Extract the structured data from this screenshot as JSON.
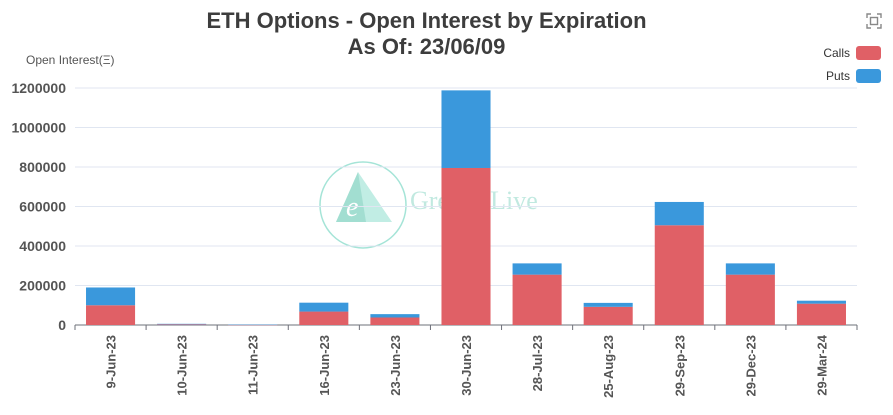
{
  "chart_data": {
    "type": "bar",
    "stacked": true,
    "title": "ETH Options - Open Interest by Expiration",
    "subtitle": "As Of: 23/06/09",
    "ylabel": "Open Interest(Ξ)",
    "xlabel": "",
    "categories": [
      "9-Jun-23",
      "10-Jun-23",
      "11-Jun-23",
      "16-Jun-23",
      "23-Jun-23",
      "30-Jun-23",
      "28-Jul-23",
      "25-Aug-23",
      "29-Sep-23",
      "29-Dec-23",
      "29-Mar-24"
    ],
    "series": [
      {
        "name": "Calls",
        "color": "#e06066",
        "values": [
          100000,
          3000,
          1000,
          68000,
          38000,
          795000,
          255000,
          92000,
          505000,
          255000,
          108000
        ]
      },
      {
        "name": "Puts",
        "color": "#3a98dc",
        "values": [
          90000,
          3000,
          1000,
          45000,
          17000,
          393000,
          57000,
          20000,
          118000,
          57000,
          15000
        ]
      }
    ],
    "ylim": [
      0,
      1200000
    ],
    "yticks": [
      0,
      200000,
      400000,
      600000,
      800000,
      1000000,
      1200000
    ],
    "ytick_labels": [
      "0",
      "200000",
      "400000",
      "600000",
      "800000",
      "1000000",
      "1200000"
    ],
    "grid": true,
    "legend_position": "top-right"
  },
  "watermark": {
    "text": "Greeks.Live",
    "logo_letter": "e"
  },
  "toolbox": {
    "icon": "save-image-icon"
  }
}
